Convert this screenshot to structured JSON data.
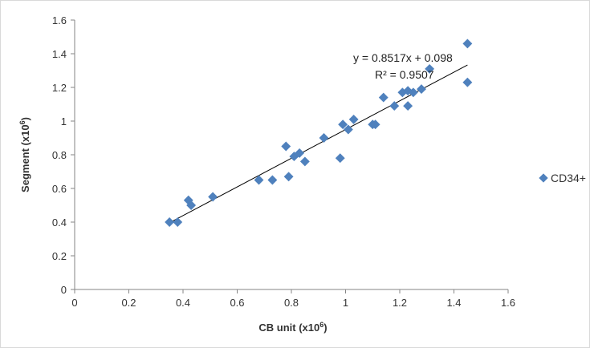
{
  "chart_data": {
    "type": "scatter",
    "xlabel": "CB unit (x10",
    "xlabel_sup": "6",
    "xlabel_end": ")",
    "ylabel": "Segment (x10",
    "ylabel_sup": "6",
    "ylabel_end": ")",
    "xlim": [
      0,
      1.6
    ],
    "ylim": [
      0,
      1.6
    ],
    "xticks": [
      "0",
      "0.2",
      "0.4",
      "0.6",
      "0.8",
      "1",
      "1.2",
      "1.4",
      "1.6"
    ],
    "yticks": [
      "0",
      "0.2",
      "0.4",
      "0.6",
      "0.8",
      "1",
      "1.2",
      "1.4",
      "1.6"
    ],
    "grid": false,
    "legend_position": "right",
    "marker_color": "#4f81bd",
    "series": [
      {
        "name": "CD34+",
        "points": [
          [
            0.35,
            0.4
          ],
          [
            0.38,
            0.4
          ],
          [
            0.42,
            0.53
          ],
          [
            0.43,
            0.5
          ],
          [
            0.51,
            0.55
          ],
          [
            0.68,
            0.65
          ],
          [
            0.73,
            0.65
          ],
          [
            0.78,
            0.85
          ],
          [
            0.79,
            0.67
          ],
          [
            0.81,
            0.79
          ],
          [
            0.83,
            0.81
          ],
          [
            0.85,
            0.76
          ],
          [
            0.92,
            0.9
          ],
          [
            0.98,
            0.78
          ],
          [
            0.99,
            0.98
          ],
          [
            1.01,
            0.95
          ],
          [
            1.03,
            1.01
          ],
          [
            1.1,
            0.98
          ],
          [
            1.11,
            0.98
          ],
          [
            1.14,
            1.14
          ],
          [
            1.18,
            1.09
          ],
          [
            1.21,
            1.17
          ],
          [
            1.23,
            1.18
          ],
          [
            1.23,
            1.09
          ],
          [
            1.25,
            1.17
          ],
          [
            1.28,
            1.19
          ],
          [
            1.31,
            1.31
          ],
          [
            1.45,
            1.46
          ],
          [
            1.45,
            1.23
          ]
        ]
      }
    ],
    "trendline": {
      "slope": 0.8517,
      "intercept": 0.098,
      "x_range": [
        0.35,
        1.45
      ]
    },
    "equation_label": "y = 0.8517x + 0.098",
    "r2_label": "R² = 0.9507"
  }
}
